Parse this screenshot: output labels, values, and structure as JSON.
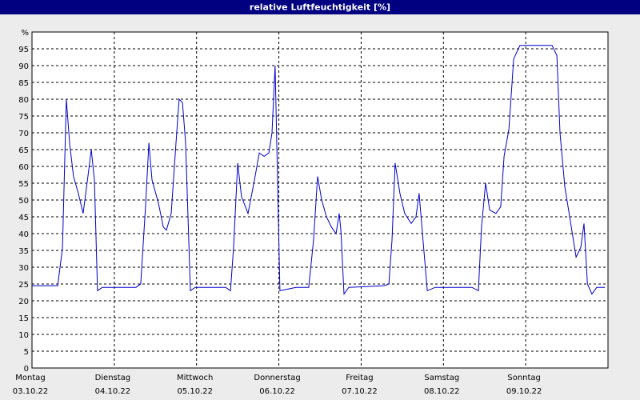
{
  "chart_data": {
    "type": "line",
    "title": "relative Luftfeuchtigkeit [%]",
    "xlim": [
      0,
      168
    ],
    "xticks": [
      {
        "value": 0,
        "label": "Montag",
        "date": "03.10.22"
      },
      {
        "value": 24,
        "label": "Dienstag",
        "date": "04.10.22"
      },
      {
        "value": 48,
        "label": "Mittwoch",
        "date": "05.10.22"
      },
      {
        "value": 72,
        "label": "Donnerstag",
        "date": "06.10.22"
      },
      {
        "value": 96,
        "label": "Freitag",
        "date": "07.10.22"
      },
      {
        "value": 120,
        "label": "Samstag",
        "date": "08.10.22"
      },
      {
        "value": 144,
        "label": "Sonntag",
        "date": "09.10.22"
      }
    ],
    "ylim": [
      0,
      100
    ],
    "yticks": [
      0,
      5,
      10,
      15,
      20,
      25,
      30,
      35,
      40,
      45,
      50,
      55,
      60,
      65,
      70,
      75,
      80,
      85,
      90,
      95,
      {
        "value": 100,
        "label": "%"
      }
    ],
    "grid": true,
    "x": [
      0,
      7.5,
      8.9,
      10,
      11,
      12.1,
      13.5,
      14.9,
      16.3,
      17.3,
      18.2,
      19.1,
      20.5,
      30.3,
      31.7,
      33.1,
      34.1,
      35,
      36.9,
      38.3,
      39.2,
      40.6,
      42,
      42.9,
      43.9,
      44.8,
      46.2,
      47.6,
      53.2,
      56.5,
      57.9,
      58.8,
      60,
      61.1,
      63,
      64.9,
      66.3,
      67.7,
      69.1,
      70,
      70.9,
      72.3,
      77,
      80.7,
      82.1,
      83.3,
      84.5,
      85.9,
      87.3,
      88.7,
      89.6,
      90.1,
      91,
      92.4,
      102.7,
      104.1,
      105,
      105.9,
      107.3,
      108.7,
      110.6,
      112,
      112.9,
      113.9,
      115.3,
      117.6,
      128.3,
      130.2,
      131.1,
      132.3,
      133.5,
      135.3,
      136.7,
      137.7,
      139.1,
      140.5,
      142.3,
      143.7,
      151.7,
      153.1,
      154,
      155.4,
      157.3,
      158.7,
      160.1,
      161,
      162,
      163.3,
      164.7,
      167.1
    ],
    "series": [
      {
        "color": "#0000cc",
        "values": [
          24.5,
          24.5,
          35.7,
          80,
          66.7,
          57,
          52,
          46,
          57,
          65,
          56,
          23,
          24,
          24,
          25,
          48,
          67,
          56,
          49,
          42,
          41,
          46,
          67,
          80,
          79,
          67,
          23,
          24,
          24,
          24,
          23,
          36,
          61,
          51,
          46,
          56,
          64,
          63,
          64,
          70,
          90,
          23,
          24,
          24,
          38,
          57,
          50,
          45,
          42,
          40,
          46,
          41,
          22,
          24,
          24.5,
          25,
          38,
          61,
          52,
          46,
          43,
          45,
          52,
          40,
          23,
          24,
          24,
          23,
          42,
          55,
          47,
          46,
          48,
          63,
          71,
          92,
          96,
          96,
          96,
          93,
          70,
          54,
          42,
          33,
          36,
          43,
          25,
          22,
          24,
          24
        ]
      }
    ]
  }
}
